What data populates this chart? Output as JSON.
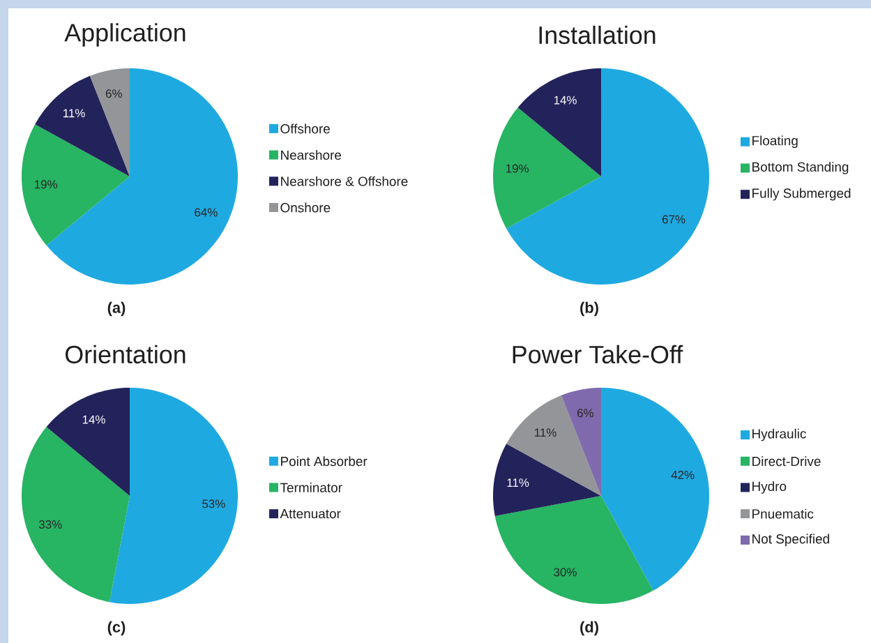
{
  "chart_data": [
    {
      "type": "pie",
      "title": "Application",
      "categories": [
        "Offshore",
        "Nearshore",
        "Nearshore & Offshore",
        "Onshore"
      ],
      "values": [
        64,
        19,
        11,
        6
      ],
      "value_labels": [
        "64%",
        "19%",
        "11%",
        "6%"
      ],
      "colors": [
        "#1fa9e1",
        "#27b463",
        "#23235b",
        "#939598"
      ],
      "legend": "right",
      "annotations": [
        "(a)"
      ]
    },
    {
      "type": "pie",
      "title": "Installation",
      "categories": [
        "Floating",
        "Bottom Standing",
        "Fully Submerged"
      ],
      "values": [
        67,
        19,
        14
      ],
      "value_labels": [
        "67%",
        "19%",
        "14%"
      ],
      "colors": [
        "#1fa9e1",
        "#27b463",
        "#23235b"
      ],
      "legend": "right",
      "annotations": [
        "(b)"
      ]
    },
    {
      "type": "pie",
      "title": "Orientation",
      "categories": [
        "Point Absorber",
        "Terminator",
        "Attenuator"
      ],
      "values": [
        53,
        33,
        14
      ],
      "value_labels": [
        "53%",
        "33%",
        "14%"
      ],
      "colors": [
        "#1fa9e1",
        "#27b463",
        "#23235b"
      ],
      "legend": "right",
      "annotations": [
        "(c)"
      ]
    },
    {
      "type": "pie",
      "title": "Power Take-Off",
      "categories": [
        "Hydraulic",
        "Direct-Drive",
        "Hydro",
        "Pnuematic",
        "Not Specified"
      ],
      "values": [
        42,
        30,
        11,
        11,
        6
      ],
      "value_labels": [
        "42%",
        "30%",
        "11%",
        "11%",
        "6%"
      ],
      "colors": [
        "#1fa9e1",
        "#27b463",
        "#23235b",
        "#939598",
        "#7f6aad"
      ],
      "legend": "right",
      "annotations": [
        "(d)"
      ]
    }
  ]
}
